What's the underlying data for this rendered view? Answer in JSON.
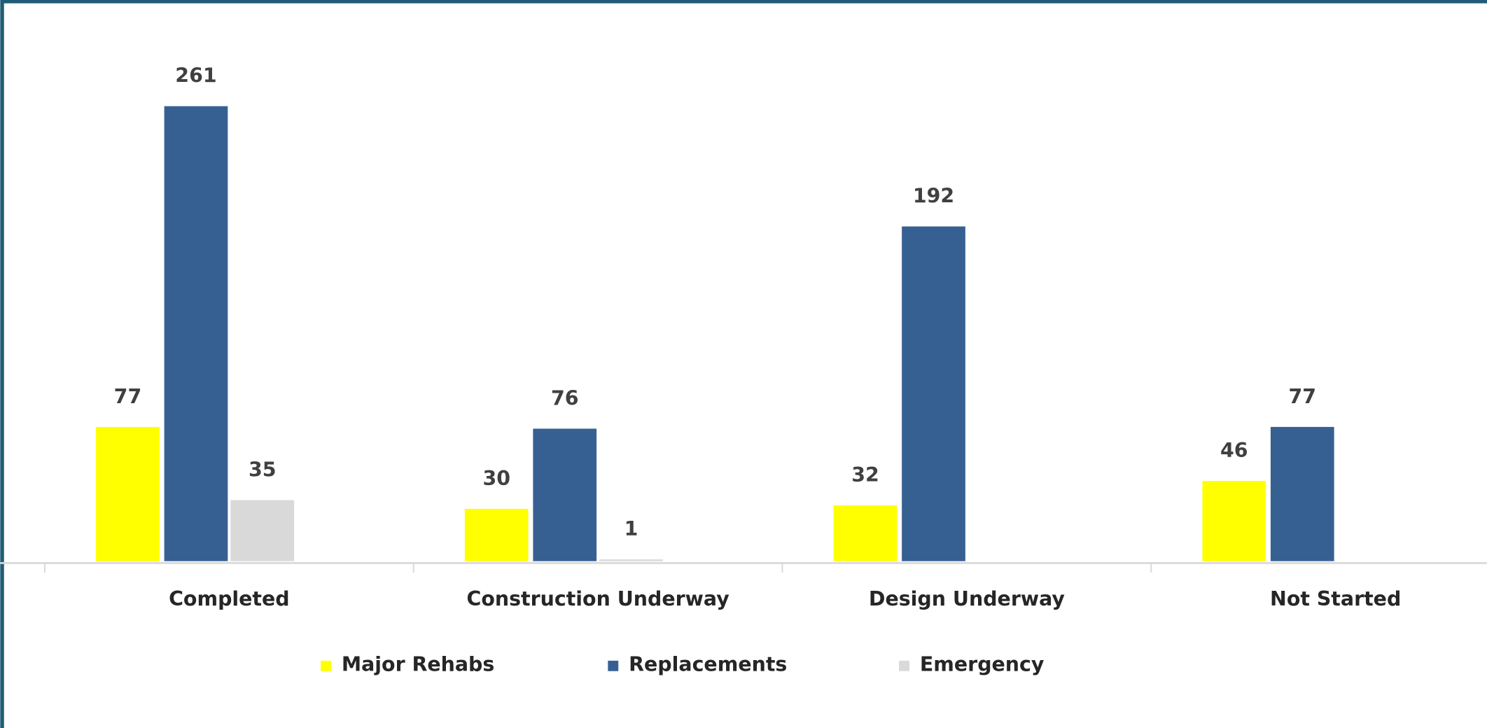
{
  "chart_data": {
    "type": "bar",
    "categories": [
      "Completed",
      "Construction Underway",
      "Design Underway",
      "Not Started"
    ],
    "series": [
      {
        "name": "Major Rehabs",
        "color": "#ffff00",
        "values": [
          77,
          30,
          32,
          46
        ]
      },
      {
        "name": "Replacements",
        "color": "#376092",
        "values": [
          261,
          76,
          192,
          77
        ]
      },
      {
        "name": "Emergency",
        "color": "#d9d9d9",
        "values": [
          35,
          1,
          null,
          null
        ]
      }
    ],
    "data_labels": true,
    "legend": "bottom"
  }
}
